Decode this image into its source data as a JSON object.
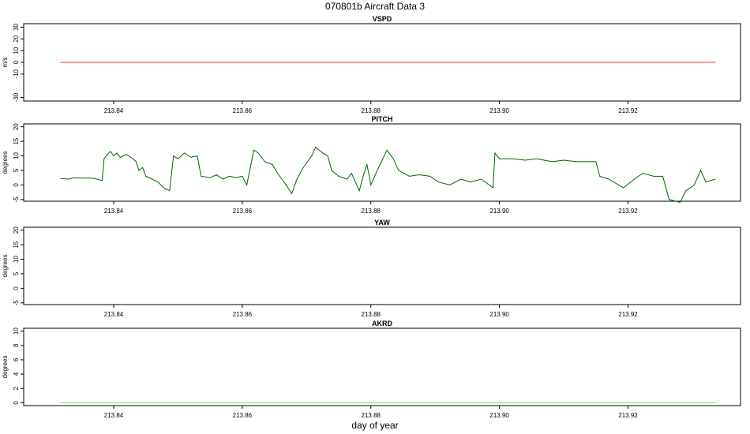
{
  "title": "070801b   Aircraft Data 3",
  "x_label": "day of year",
  "chart_data": [
    {
      "type": "line",
      "title": "VSPD",
      "y_label": "m/s",
      "x": [
        213.8317,
        213.9336
      ],
      "series": [
        {
          "color": "#ff3333",
          "values": [
            0,
            0
          ]
        }
      ],
      "xlim": [
        213.826,
        213.9375
      ],
      "xticks": [
        213.84,
        213.86,
        213.88,
        {
          "value": 213.9,
          "label": "213.90"
        },
        213.92
      ],
      "ylim": [
        -33,
        33
      ],
      "yticks": [
        -30,
        -10,
        0,
        10,
        20,
        30
      ]
    },
    {
      "type": "line",
      "title": "PITCH",
      "y_label": "degrees",
      "x": [
        213.8317,
        213.833,
        213.834,
        213.835,
        213.836,
        213.837,
        213.8382,
        213.8385,
        213.839,
        213.8395,
        213.84,
        213.8405,
        213.841,
        213.842,
        213.843,
        213.8435,
        213.8439,
        213.8445,
        213.845,
        213.846,
        213.8469,
        213.8478,
        213.8487,
        213.8493,
        213.85,
        213.851,
        213.852,
        213.853,
        213.8536,
        213.855,
        213.856,
        213.857,
        213.858,
        213.859,
        213.86,
        213.8607,
        213.8618,
        213.8625,
        213.8635,
        213.8647,
        213.8655,
        213.8665,
        213.8677,
        213.8685,
        213.8695,
        213.8708,
        213.8714,
        213.8725,
        213.8733,
        213.8739,
        213.875,
        213.8763,
        213.877,
        213.8782,
        213.8788,
        213.8794,
        213.88,
        213.881,
        213.8825,
        213.8835,
        213.8843,
        213.886,
        213.8875,
        213.8892,
        213.8905,
        213.8923,
        213.894,
        213.8955,
        213.8972,
        213.899,
        213.8993,
        213.9,
        213.9021,
        213.904,
        213.9058,
        213.9082,
        213.91,
        213.912,
        213.915,
        213.9156,
        213.917,
        213.9193,
        213.921,
        213.9223,
        213.924,
        213.9254,
        213.9264,
        213.9281,
        213.929,
        213.9303,
        213.9313,
        213.9321,
        213.9336
      ],
      "series": [
        {
          "color": "#006400",
          "values": [
            2.2,
            2.0,
            2.5,
            2.3,
            2.4,
            2.2,
            1.5,
            9,
            10.5,
            11.5,
            10,
            11,
            9.5,
            10.5,
            9,
            8,
            5,
            6,
            3,
            2,
            1,
            -1,
            -2,
            10,
            9,
            11,
            9.5,
            10,
            3,
            2.5,
            3.5,
            2,
            3,
            2.5,
            3,
            0,
            12,
            11,
            8,
            7,
            4,
            1,
            -3,
            2,
            6,
            10,
            13,
            11,
            10,
            5,
            3,
            2,
            4,
            -2,
            3,
            7,
            0,
            5,
            12,
            9,
            5,
            3,
            3.5,
            3,
            1,
            0,
            2,
            1,
            2,
            -1,
            11,
            9,
            9,
            8.5,
            9,
            8,
            8.5,
            8,
            8,
            3,
            2,
            -1,
            2,
            4,
            3,
            3,
            -5,
            -6,
            -2,
            0,
            5,
            1,
            2
          ]
        }
      ],
      "xlim": [
        213.826,
        213.9375
      ],
      "xticks": [
        213.84,
        213.86,
        213.88,
        {
          "value": 213.9,
          "label": "213.90"
        },
        213.92
      ],
      "ylim": [
        -5.6,
        21
      ],
      "yticks": [
        -5,
        0,
        5,
        10,
        15,
        20
      ]
    },
    {
      "type": "line",
      "title": "YAW",
      "y_label": "degrees",
      "x": [],
      "series": [],
      "xlim": [
        213.826,
        213.9375
      ],
      "xticks": [
        213.84,
        213.86,
        213.88,
        {
          "value": 213.9,
          "label": "213.90"
        },
        213.92
      ],
      "ylim": [
        -5.6,
        21
      ],
      "yticks": [
        -5,
        0,
        5,
        10,
        15,
        20
      ]
    },
    {
      "type": "line",
      "title": "AKRD",
      "y_label": "degrees",
      "x": [
        213.8317,
        213.9336
      ],
      "series": [
        {
          "color": "#66dd66",
          "values": [
            0,
            0
          ]
        }
      ],
      "xlim": [
        213.826,
        213.9375
      ],
      "xticks": [
        213.84,
        213.86,
        213.88,
        {
          "value": 213.9,
          "label": "213.90"
        },
        213.92
      ],
      "ylim": [
        -0.4,
        10.4
      ],
      "yticks": [
        0,
        2,
        4,
        6,
        8,
        10
      ]
    }
  ]
}
